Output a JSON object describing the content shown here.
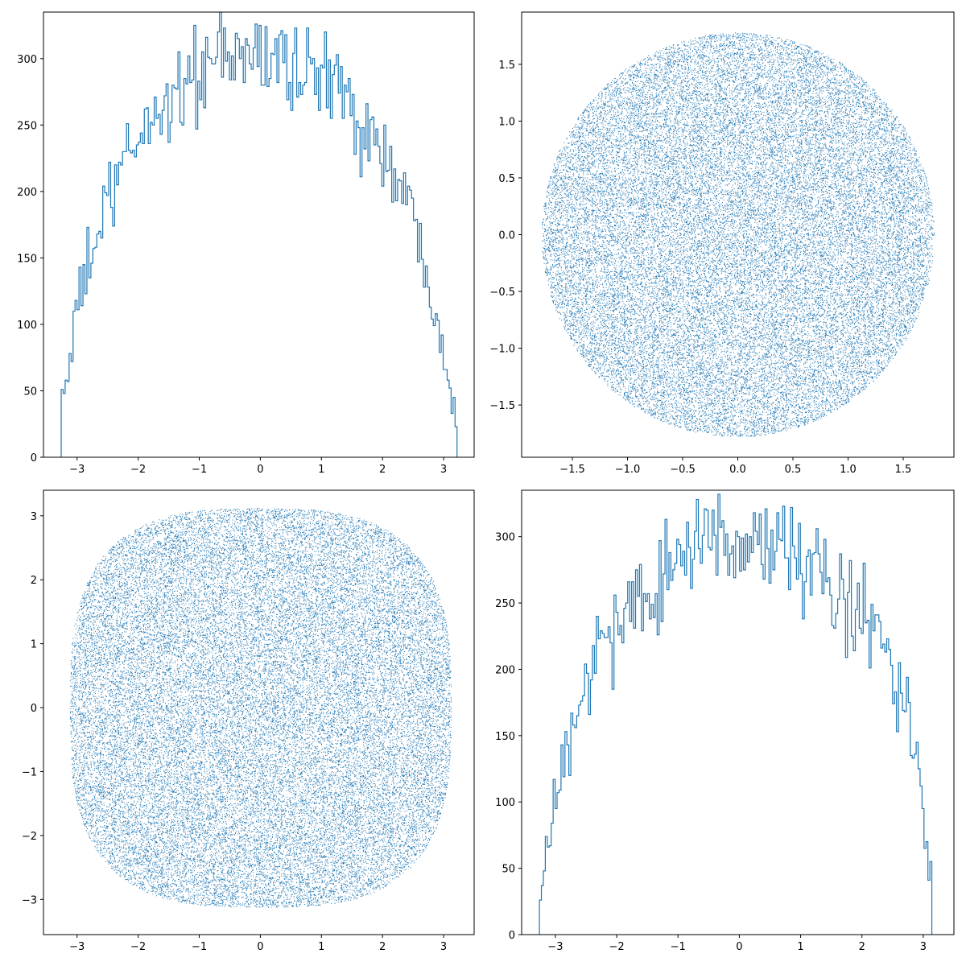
{
  "figure": {
    "background": "#ffffff",
    "mark_color": "#1f77b4"
  },
  "chart_data": [
    {
      "type": "histogram",
      "panel": "top-left",
      "xlim": [
        -3.55,
        3.5
      ],
      "ylim": [
        0,
        335
      ],
      "xticks": [
        -3,
        -2,
        -1,
        0,
        1,
        2,
        3
      ],
      "yticks": [
        0,
        50,
        100,
        150,
        200,
        250,
        300
      ],
      "bins": {
        "start": -3.26,
        "end": 3.22,
        "count": 200
      },
      "envelope": [
        [
          -3.26,
          45
        ],
        [
          -3.1,
          75
        ],
        [
          -3.0,
          110
        ],
        [
          -2.8,
          150
        ],
        [
          -2.6,
          175
        ],
        [
          -2.4,
          200
        ],
        [
          -2.2,
          222
        ],
        [
          -2.0,
          240
        ],
        [
          -1.8,
          255
        ],
        [
          -1.5,
          268
        ],
        [
          -1.2,
          282
        ],
        [
          -1.0,
          290
        ],
        [
          -0.6,
          300
        ],
        [
          -0.2,
          302
        ],
        [
          0.2,
          301
        ],
        [
          0.6,
          296
        ],
        [
          1.0,
          285
        ],
        [
          1.3,
          276
        ],
        [
          1.6,
          258
        ],
        [
          1.9,
          238
        ],
        [
          2.2,
          212
        ],
        [
          2.5,
          180
        ],
        [
          2.7,
          150
        ],
        [
          2.85,
          120
        ],
        [
          3.0,
          82
        ],
        [
          3.1,
          55
        ],
        [
          3.2,
          30
        ]
      ]
    },
    {
      "type": "scatter",
      "panel": "top-right",
      "shape": "disk",
      "xlim": [
        -1.96,
        1.96
      ],
      "ylim": [
        -1.96,
        1.96
      ],
      "xticks": [
        -1.5,
        -1.0,
        -0.5,
        0.0,
        0.5,
        1.0,
        1.5
      ],
      "yticks": [
        -1.5,
        -1.0,
        -0.5,
        0.0,
        0.5,
        1.0,
        1.5
      ],
      "radius": 1.78,
      "n_points": 38000
    },
    {
      "type": "scatter",
      "panel": "bottom-left",
      "shape": "rounded-square",
      "xlim": [
        -3.55,
        3.5
      ],
      "ylim": [
        -3.55,
        3.4
      ],
      "xticks": [
        -3,
        -2,
        -1,
        0,
        1,
        2,
        3
      ],
      "yticks": [
        -3,
        -2,
        -1,
        0,
        1,
        2,
        3
      ],
      "half_width": 3.12,
      "superellipse_exponent": 3.0,
      "n_points": 40000
    },
    {
      "type": "histogram",
      "panel": "bottom-right",
      "xlim": [
        -3.55,
        3.5
      ],
      "ylim": [
        0,
        335
      ],
      "xticks": [
        -3,
        -2,
        -1,
        0,
        1,
        2,
        3
      ],
      "yticks": [
        0,
        50,
        100,
        150,
        200,
        250,
        300
      ],
      "bins": {
        "start": -3.26,
        "end": 3.14,
        "count": 200
      },
      "envelope": [
        [
          -3.26,
          15
        ],
        [
          -3.2,
          45
        ],
        [
          -3.1,
          70
        ],
        [
          -3.0,
          105
        ],
        [
          -2.8,
          140
        ],
        [
          -2.6,
          175
        ],
        [
          -2.4,
          200
        ],
        [
          -2.2,
          220
        ],
        [
          -2.0,
          235
        ],
        [
          -1.8,
          248
        ],
        [
          -1.5,
          262
        ],
        [
          -1.2,
          275
        ],
        [
          -1.0,
          282
        ],
        [
          -0.6,
          290
        ],
        [
          -0.2,
          293
        ],
        [
          0.2,
          295
        ],
        [
          0.6,
          290
        ],
        [
          1.0,
          284
        ],
        [
          1.3,
          275
        ],
        [
          1.6,
          262
        ],
        [
          1.9,
          245
        ],
        [
          2.2,
          228
        ],
        [
          2.5,
          195
        ],
        [
          2.7,
          170
        ],
        [
          2.85,
          140
        ],
        [
          2.95,
          110
        ],
        [
          3.05,
          70
        ],
        [
          3.14,
          30
        ]
      ]
    }
  ]
}
